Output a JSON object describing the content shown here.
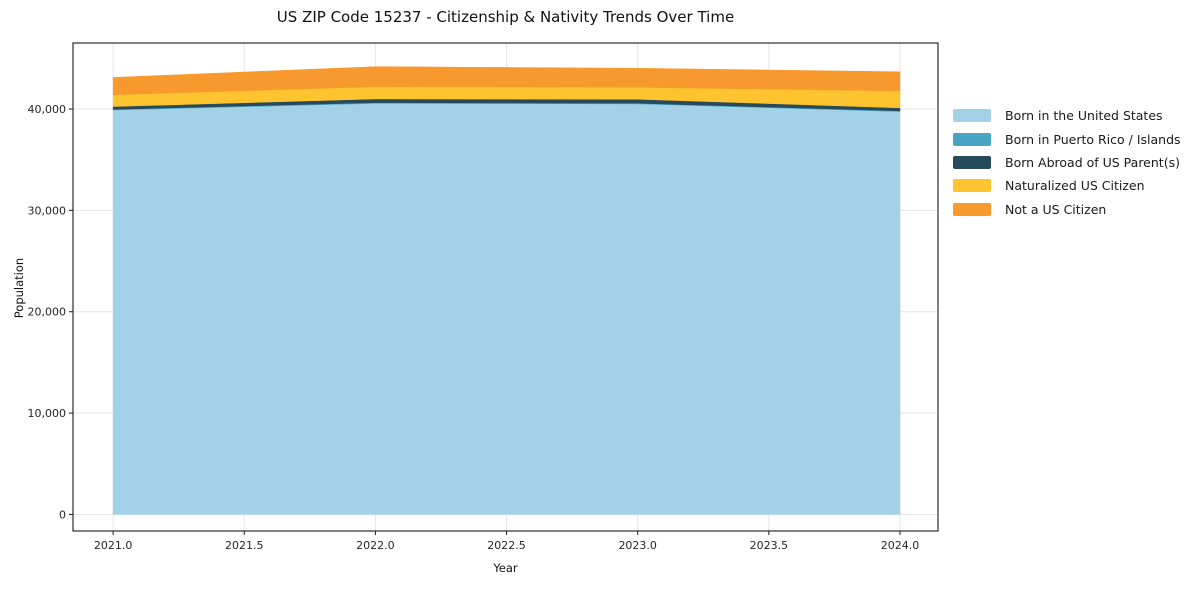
{
  "figure": {
    "background": "#ffffff"
  },
  "chart_data": {
    "type": "area",
    "stacked": true,
    "title": "US ZIP Code 15237 - Citizenship & Nativity Trends Over Time",
    "xlabel": "Year",
    "ylabel": "Population",
    "x": [
      2021,
      2022,
      2023,
      2024
    ],
    "series": [
      {
        "name": "Born in the United States",
        "color": "#a3d1e6",
        "values": [
          39900,
          40550,
          40500,
          39750
        ]
      },
      {
        "name": "Born in Puerto Rico / Islands",
        "color": "#4aa5c4",
        "values": [
          60,
          80,
          70,
          60
        ]
      },
      {
        "name": "Born Abroad of US Parent(s)",
        "color": "#26495c",
        "values": [
          280,
          360,
          390,
          300
        ]
      },
      {
        "name": "Naturalized US Citizen",
        "color": "#fdc42f",
        "values": [
          1160,
          1210,
          1180,
          1670
        ]
      },
      {
        "name": "Not a US Citizen",
        "color": "#f8992d",
        "values": [
          1710,
          1980,
          1880,
          1890
        ]
      }
    ],
    "xticks": {
      "values": [
        2021.0,
        2021.5,
        2022.0,
        2022.5,
        2023.0,
        2023.5,
        2024.0
      ],
      "labels": [
        "2021.0",
        "2021.5",
        "2022.0",
        "2022.5",
        "2023.0",
        "2023.5",
        "2024.0"
      ]
    },
    "yticks": {
      "values": [
        0,
        10000,
        20000,
        30000,
        40000
      ],
      "labels": [
        "0",
        "10,000",
        "20,000",
        "30,000",
        "40,000"
      ]
    },
    "xlim": [
      2020.847,
      2024.145
    ],
    "ylim": [
      -1630,
      46510
    ],
    "grid": true,
    "grid_color": "#e6e6e6",
    "spine_color": "#1a1a1a",
    "legend": {
      "position": "right-outside",
      "frame": false
    }
  }
}
